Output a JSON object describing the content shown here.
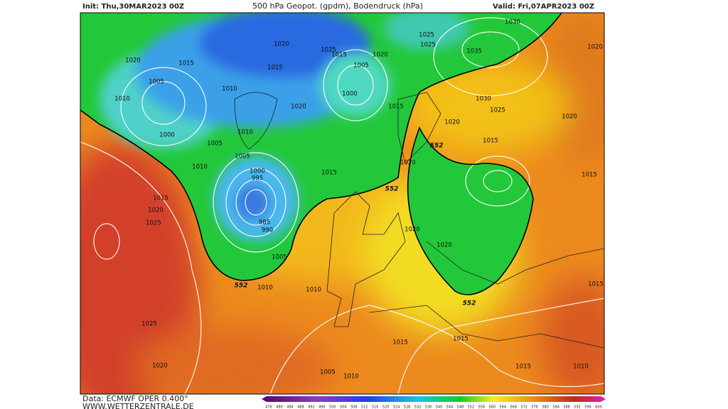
{
  "header": {
    "init": "Init: Thu,30MAR2023 00Z",
    "title": "500 hPa Geopot. (gpdm), Bodendruck (hPa)",
    "valid": "Valid: Fri,07APR2023 00Z"
  },
  "footer": {
    "source": "Data: ECMWF OPER 0.400°",
    "website": "WWW.WETTERZENTRALE.DE"
  },
  "colorbar": {
    "labels": [
      476,
      480,
      484,
      488,
      492,
      496,
      500,
      504,
      508,
      512,
      516,
      520,
      524,
      528,
      532,
      536,
      540,
      544,
      548,
      552,
      556,
      560,
      564,
      568,
      572,
      576,
      580,
      584,
      588,
      592,
      596,
      600
    ]
  },
  "map_labels": {
    "isobars": [
      "1020",
      "1015",
      "1005",
      "1010",
      "1000",
      "1005",
      "1010",
      "1005",
      "1000",
      "995",
      "985",
      "990",
      "1015",
      "1020",
      "1025",
      "1005",
      "1010",
      "1010",
      "1025",
      "1020",
      "1005",
      "1010",
      "1015",
      "1015",
      "1015",
      "1010",
      "1015",
      "1015",
      "1020",
      "1020",
      "1030",
      "1035",
      "1025",
      "1025",
      "1030",
      "1025",
      "1020",
      "1015",
      "1020",
      "1020",
      "1020",
      "1015",
      "1015",
      "1000",
      "1005",
      "1020",
      "1015",
      "1025",
      "1020",
      "1015",
      "1010",
      "1010",
      "1020"
    ],
    "contour_552": [
      "552",
      "552",
      "552",
      "552"
    ]
  }
}
